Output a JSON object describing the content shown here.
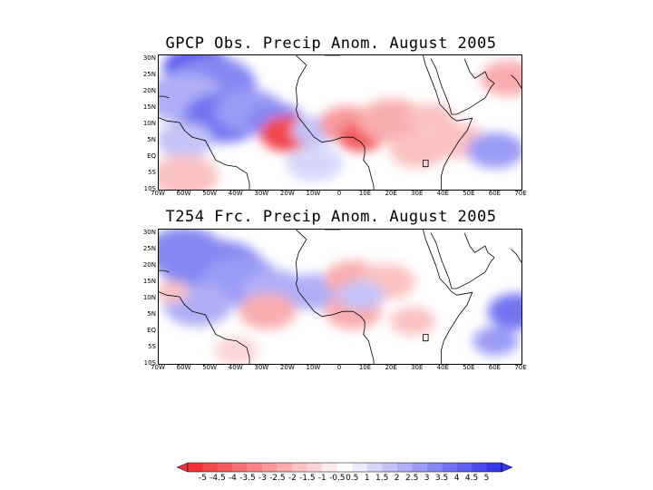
{
  "chart_data": [
    {
      "type": "heatmap",
      "title": "GPCP Obs. Precip   Anom. August 2005",
      "lat_labels": [
        "30N",
        "25N",
        "20N",
        "15N",
        "10N",
        "5N",
        "EQ",
        "5S",
        "10S"
      ],
      "lon_labels": [
        "70W",
        "60W",
        "50W",
        "40W",
        "30W",
        "20W",
        "10W",
        "0",
        "10E",
        "20E",
        "30E",
        "40E",
        "50E",
        "60E",
        "70E"
      ],
      "blobs": [
        {
          "lon": -55,
          "lat": 27,
          "r": 6,
          "value": 4.5
        },
        {
          "lon": -50,
          "lat": 22,
          "r": 8,
          "value": 3.0
        },
        {
          "lon": -60,
          "lat": 18,
          "r": 7,
          "value": 2.0
        },
        {
          "lon": -45,
          "lat": 12,
          "r": 7,
          "value": 3.5
        },
        {
          "lon": -35,
          "lat": 14,
          "r": 6,
          "value": 2.5
        },
        {
          "lon": -25,
          "lat": 11,
          "r": 5,
          "value": 3.0
        },
        {
          "lon": -20,
          "lat": 7,
          "r": 5,
          "value": -4.5
        },
        {
          "lon": -10,
          "lat": 8,
          "r": 4,
          "value": 1.5
        },
        {
          "lon": 3,
          "lat": 10,
          "r": 5,
          "value": -2.5
        },
        {
          "lon": 8,
          "lat": 6,
          "r": 4,
          "value": -4.0
        },
        {
          "lon": 20,
          "lat": 11,
          "r": 6,
          "value": -2.0
        },
        {
          "lon": 35,
          "lat": 12,
          "r": 4,
          "value": -1.5
        },
        {
          "lon": 30,
          "lat": 2,
          "r": 5,
          "value": -1.5
        },
        {
          "lon": 45,
          "lat": 5,
          "r": 5,
          "value": -1.5
        },
        {
          "lon": 60,
          "lat": 2,
          "r": 5,
          "value": 2.5
        },
        {
          "lon": 65,
          "lat": 24,
          "r": 5,
          "value": -2.0
        },
        {
          "lon": -60,
          "lat": 5,
          "r": 5,
          "value": 1.5
        },
        {
          "lon": -60,
          "lat": -6,
          "r": 6,
          "value": -1.5
        },
        {
          "lon": -10,
          "lat": -2,
          "r": 5,
          "value": 1.0
        }
      ]
    },
    {
      "type": "heatmap",
      "title": "T254 Frc. Precip Anom. August 2005",
      "lat_labels": [
        "30N",
        "25N",
        "20N",
        "15N",
        "10N",
        "5N",
        "EQ",
        "5S",
        "10S"
      ],
      "lon_labels": [
        "70W",
        "60W",
        "50W",
        "40W",
        "30W",
        "20W",
        "10W",
        "0",
        "10E",
        "20E",
        "30E",
        "40E",
        "50E",
        "60E",
        "70E"
      ],
      "blobs": [
        {
          "lon": -60,
          "lat": 24,
          "r": 7,
          "value": 3.0
        },
        {
          "lon": -48,
          "lat": 18,
          "r": 9,
          "value": 3.0
        },
        {
          "lon": -38,
          "lat": 15,
          "r": 7,
          "value": 2.5
        },
        {
          "lon": -25,
          "lat": 12,
          "r": 6,
          "value": 2.0
        },
        {
          "lon": -10,
          "lat": 12,
          "r": 5,
          "value": 2.0
        },
        {
          "lon": -55,
          "lat": 8,
          "r": 6,
          "value": 2.0
        },
        {
          "lon": -28,
          "lat": 6,
          "r": 5,
          "value": -2.0
        },
        {
          "lon": -65,
          "lat": 12,
          "r": 3,
          "value": -1.5
        },
        {
          "lon": 5,
          "lat": 16,
          "r": 5,
          "value": -2.0
        },
        {
          "lon": 18,
          "lat": 15,
          "r": 5,
          "value": -1.5
        },
        {
          "lon": 5,
          "lat": 6,
          "r": 5,
          "value": -2.0
        },
        {
          "lon": 8,
          "lat": 11,
          "r": 4,
          "value": 1.5
        },
        {
          "lon": 28,
          "lat": 3,
          "r": 4,
          "value": -1.5
        },
        {
          "lon": 68,
          "lat": 6,
          "r": 5,
          "value": 3.5
        },
        {
          "lon": 60,
          "lat": -3,
          "r": 4,
          "value": 2.5
        },
        {
          "lon": -40,
          "lat": -6,
          "r": 4,
          "value": -1.0
        }
      ]
    }
  ],
  "colorbar": {
    "labels": [
      "-5",
      "-4.5",
      "-4",
      "-3.5",
      "-3",
      "-2.5",
      "-2",
      "-1.5",
      "-1",
      "-0.5",
      "0.5",
      "1",
      "1.5",
      "2",
      "2.5",
      "3",
      "3.5",
      "4",
      "4.5",
      "5"
    ]
  },
  "colors": {
    "neg_max": "#f0333a",
    "pos_max": "#3b3bea",
    "coast": "#000000"
  }
}
